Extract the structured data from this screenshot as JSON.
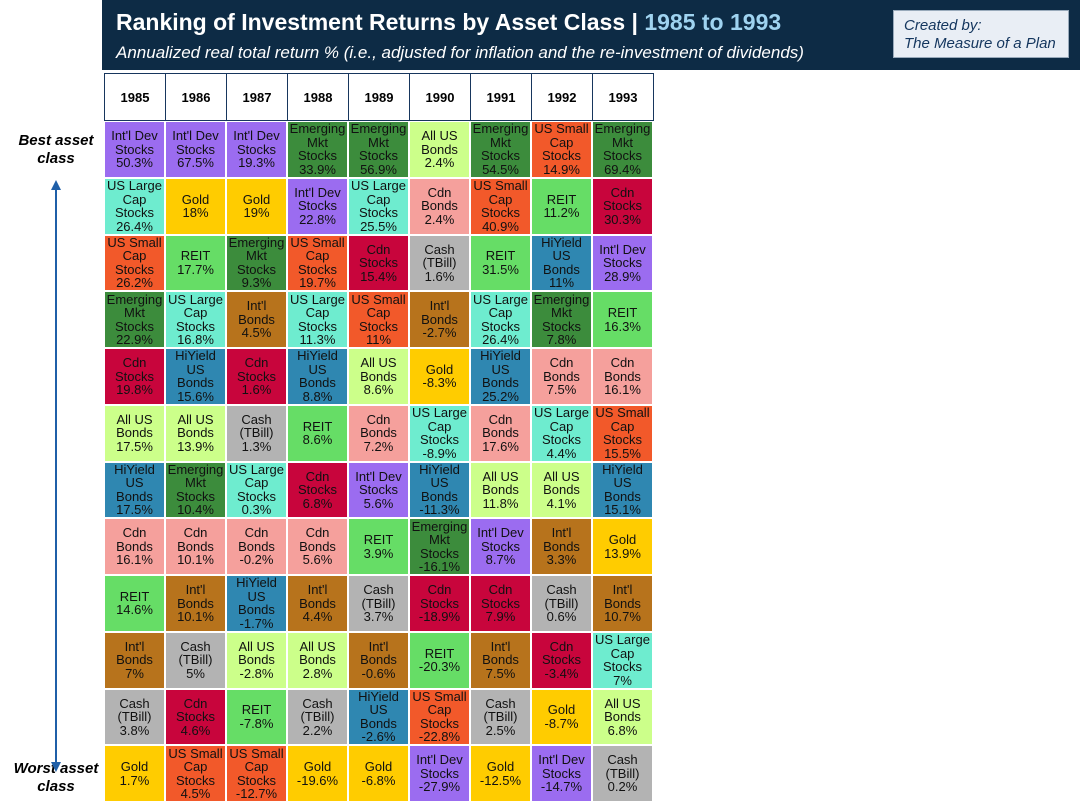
{
  "header": {
    "title": "Ranking of Investment Returns by Asset Class | ",
    "title_highlight": "1985 to 1993",
    "subtitle": "Annualized real total return % (i.e., adjusted for inflation and the re-investment of dividends)",
    "credit": [
      "Created by:",
      "The Measure of a Plan"
    ]
  },
  "side_labels": {
    "best": "Best asset\nclass",
    "worst": "Worst asset\nclass"
  },
  "colors": {
    "Int'l Dev\nStocks": "#9b6cf0",
    "Emerging\nMkt\nStocks": "#3c8c3c",
    "US Small\nCap\nStocks": "#f2592a",
    "All US\nBonds": "#ccff8a",
    "US Large\nCap\nStocks": "#6eeccf",
    "Gold": "#ffcc00",
    "Cdn\nBonds": "#f5a09c",
    "REIT": "#66dd66",
    "Cash\n(TBill)": "#b3b3b3",
    "HiYield\nUS\nBonds": "#2f87b1",
    "Int'l\nBonds": "#b7731c",
    "Cdn\nStocks": "#c8053c"
  },
  "table": {
    "columns": [
      {
        "year": "1985",
        "cells": [
          {
            "asset": "Int'l Dev\nStocks",
            "value": "50.3%"
          },
          {
            "asset": "US Large\nCap\nStocks",
            "value": "26.4%"
          },
          {
            "asset": "US Small\nCap\nStocks",
            "value": "26.2%"
          },
          {
            "asset": "Emerging\nMkt\nStocks",
            "value": "22.9%"
          },
          {
            "asset": "Cdn\nStocks",
            "value": "19.8%"
          },
          {
            "asset": "All US\nBonds",
            "value": "17.5%"
          },
          {
            "asset": "HiYield\nUS\nBonds",
            "value": "17.5%"
          },
          {
            "asset": "Cdn\nBonds",
            "value": "16.1%"
          },
          {
            "asset": "REIT",
            "value": "14.6%"
          },
          {
            "asset": "Int'l\nBonds",
            "value": "7%"
          },
          {
            "asset": "Cash\n(TBill)",
            "value": "3.8%"
          },
          {
            "asset": "Gold",
            "value": "1.7%"
          }
        ]
      },
      {
        "year": "1986",
        "cells": [
          {
            "asset": "Int'l Dev\nStocks",
            "value": "67.5%"
          },
          {
            "asset": "Gold",
            "value": "18%"
          },
          {
            "asset": "REIT",
            "value": "17.7%"
          },
          {
            "asset": "US Large\nCap\nStocks",
            "value": "16.8%"
          },
          {
            "asset": "HiYield\nUS\nBonds",
            "value": "15.6%"
          },
          {
            "asset": "All US\nBonds",
            "value": "13.9%"
          },
          {
            "asset": "Emerging\nMkt\nStocks",
            "value": "10.4%"
          },
          {
            "asset": "Cdn\nBonds",
            "value": "10.1%"
          },
          {
            "asset": "Int'l\nBonds",
            "value": "10.1%"
          },
          {
            "asset": "Cash\n(TBill)",
            "value": "5%"
          },
          {
            "asset": "Cdn\nStocks",
            "value": "4.6%"
          },
          {
            "asset": "US Small\nCap\nStocks",
            "value": "4.5%"
          }
        ]
      },
      {
        "year": "1987",
        "cells": [
          {
            "asset": "Int'l Dev\nStocks",
            "value": "19.3%"
          },
          {
            "asset": "Gold",
            "value": "19%"
          },
          {
            "asset": "Emerging\nMkt\nStocks",
            "value": "9.3%"
          },
          {
            "asset": "Int'l\nBonds",
            "value": "4.5%"
          },
          {
            "asset": "Cdn\nStocks",
            "value": "1.6%"
          },
          {
            "asset": "Cash\n(TBill)",
            "value": "1.3%"
          },
          {
            "asset": "US Large\nCap\nStocks",
            "value": "0.3%"
          },
          {
            "asset": "Cdn\nBonds",
            "value": "-0.2%"
          },
          {
            "asset": "HiYield\nUS\nBonds",
            "value": "-1.7%"
          },
          {
            "asset": "All US\nBonds",
            "value": "-2.8%"
          },
          {
            "asset": "REIT",
            "value": "-7.8%"
          },
          {
            "asset": "US Small\nCap\nStocks",
            "value": "-12.7%"
          }
        ]
      },
      {
        "year": "1988",
        "cells": [
          {
            "asset": "Emerging\nMkt\nStocks",
            "value": "33.9%"
          },
          {
            "asset": "Int'l Dev\nStocks",
            "value": "22.8%"
          },
          {
            "asset": "US Small\nCap\nStocks",
            "value": "19.7%"
          },
          {
            "asset": "US Large\nCap\nStocks",
            "value": "11.3%"
          },
          {
            "asset": "HiYield\nUS\nBonds",
            "value": "8.8%"
          },
          {
            "asset": "REIT",
            "value": "8.6%"
          },
          {
            "asset": "Cdn\nStocks",
            "value": "6.8%"
          },
          {
            "asset": "Cdn\nBonds",
            "value": "5.6%"
          },
          {
            "asset": "Int'l\nBonds",
            "value": "4.4%"
          },
          {
            "asset": "All US\nBonds",
            "value": "2.8%"
          },
          {
            "asset": "Cash\n(TBill)",
            "value": "2.2%"
          },
          {
            "asset": "Gold",
            "value": "-19.6%"
          }
        ]
      },
      {
        "year": "1989",
        "cells": [
          {
            "asset": "Emerging\nMkt\nStocks",
            "value": "56.9%"
          },
          {
            "asset": "US Large\nCap\nStocks",
            "value": "25.5%"
          },
          {
            "asset": "Cdn\nStocks",
            "value": "15.4%"
          },
          {
            "asset": "US Small\nCap\nStocks",
            "value": "11%"
          },
          {
            "asset": "All US\nBonds",
            "value": "8.6%"
          },
          {
            "asset": "Cdn\nBonds",
            "value": "7.2%"
          },
          {
            "asset": "Int'l Dev\nStocks",
            "value": "5.6%"
          },
          {
            "asset": "REIT",
            "value": "3.9%"
          },
          {
            "asset": "Cash\n(TBill)",
            "value": "3.7%"
          },
          {
            "asset": "Int'l\nBonds",
            "value": "-0.6%"
          },
          {
            "asset": "HiYield\nUS\nBonds",
            "value": "-2.6%"
          },
          {
            "asset": "Gold",
            "value": "-6.8%"
          }
        ]
      },
      {
        "year": "1990",
        "cells": [
          {
            "asset": "All US\nBonds",
            "value": "2.4%"
          },
          {
            "asset": "Cdn\nBonds",
            "value": "2.4%"
          },
          {
            "asset": "Cash\n(TBill)",
            "value": "1.6%"
          },
          {
            "asset": "Int'l\nBonds",
            "value": "-2.7%"
          },
          {
            "asset": "Gold",
            "value": "-8.3%"
          },
          {
            "asset": "US Large\nCap\nStocks",
            "value": "-8.9%"
          },
          {
            "asset": "HiYield\nUS\nBonds",
            "value": "-11.3%"
          },
          {
            "asset": "Emerging\nMkt\nStocks",
            "value": "-16.1%"
          },
          {
            "asset": "Cdn\nStocks",
            "value": "-18.9%"
          },
          {
            "asset": "REIT",
            "value": "-20.3%"
          },
          {
            "asset": "US Small\nCap\nStocks",
            "value": "-22.8%"
          },
          {
            "asset": "Int'l Dev\nStocks",
            "value": "-27.9%"
          }
        ]
      },
      {
        "year": "1991",
        "cells": [
          {
            "asset": "Emerging\nMkt\nStocks",
            "value": "54.5%"
          },
          {
            "asset": "US Small\nCap\nStocks",
            "value": "40.9%"
          },
          {
            "asset": "REIT",
            "value": "31.5%"
          },
          {
            "asset": "US Large\nCap\nStocks",
            "value": "26.4%"
          },
          {
            "asset": "HiYield\nUS\nBonds",
            "value": "25.2%"
          },
          {
            "asset": "Cdn\nBonds",
            "value": "17.6%"
          },
          {
            "asset": "All US\nBonds",
            "value": "11.8%"
          },
          {
            "asset": "Int'l Dev\nStocks",
            "value": "8.7%"
          },
          {
            "asset": "Cdn\nStocks",
            "value": "7.9%"
          },
          {
            "asset": "Int'l\nBonds",
            "value": "7.5%"
          },
          {
            "asset": "Cash\n(TBill)",
            "value": "2.5%"
          },
          {
            "asset": "Gold",
            "value": "-12.5%"
          }
        ]
      },
      {
        "year": "1992",
        "cells": [
          {
            "asset": "US Small\nCap\nStocks",
            "value": "14.9%"
          },
          {
            "asset": "REIT",
            "value": "11.2%"
          },
          {
            "asset": "HiYield\nUS\nBonds",
            "value": "11%"
          },
          {
            "asset": "Emerging\nMkt\nStocks",
            "value": "7.8%"
          },
          {
            "asset": "Cdn\nBonds",
            "value": "7.5%"
          },
          {
            "asset": "US Large\nCap\nStocks",
            "value": "4.4%"
          },
          {
            "asset": "All US\nBonds",
            "value": "4.1%"
          },
          {
            "asset": "Int'l\nBonds",
            "value": "3.3%"
          },
          {
            "asset": "Cash\n(TBill)",
            "value": "0.6%"
          },
          {
            "asset": "Cdn\nStocks",
            "value": "-3.4%"
          },
          {
            "asset": "Gold",
            "value": "-8.7%"
          },
          {
            "asset": "Int'l Dev\nStocks",
            "value": "-14.7%"
          }
        ]
      },
      {
        "year": "1993",
        "cells": [
          {
            "asset": "Emerging\nMkt\nStocks",
            "value": "69.4%"
          },
          {
            "asset": "Cdn\nStocks",
            "value": "30.3%"
          },
          {
            "asset": "Int'l Dev\nStocks",
            "value": "28.9%"
          },
          {
            "asset": "REIT",
            "value": "16.3%"
          },
          {
            "asset": "Cdn\nBonds",
            "value": "16.1%"
          },
          {
            "asset": "US Small\nCap\nStocks",
            "value": "15.5%"
          },
          {
            "asset": "HiYield\nUS\nBonds",
            "value": "15.1%"
          },
          {
            "asset": "Gold",
            "value": "13.9%"
          },
          {
            "asset": "Int'l\nBonds",
            "value": "10.7%"
          },
          {
            "asset": "US Large\nCap\nStocks",
            "value": "7%"
          },
          {
            "asset": "All US\nBonds",
            "value": "6.8%"
          },
          {
            "asset": "Cash\n(TBill)",
            "value": "0.2%"
          }
        ]
      }
    ]
  }
}
